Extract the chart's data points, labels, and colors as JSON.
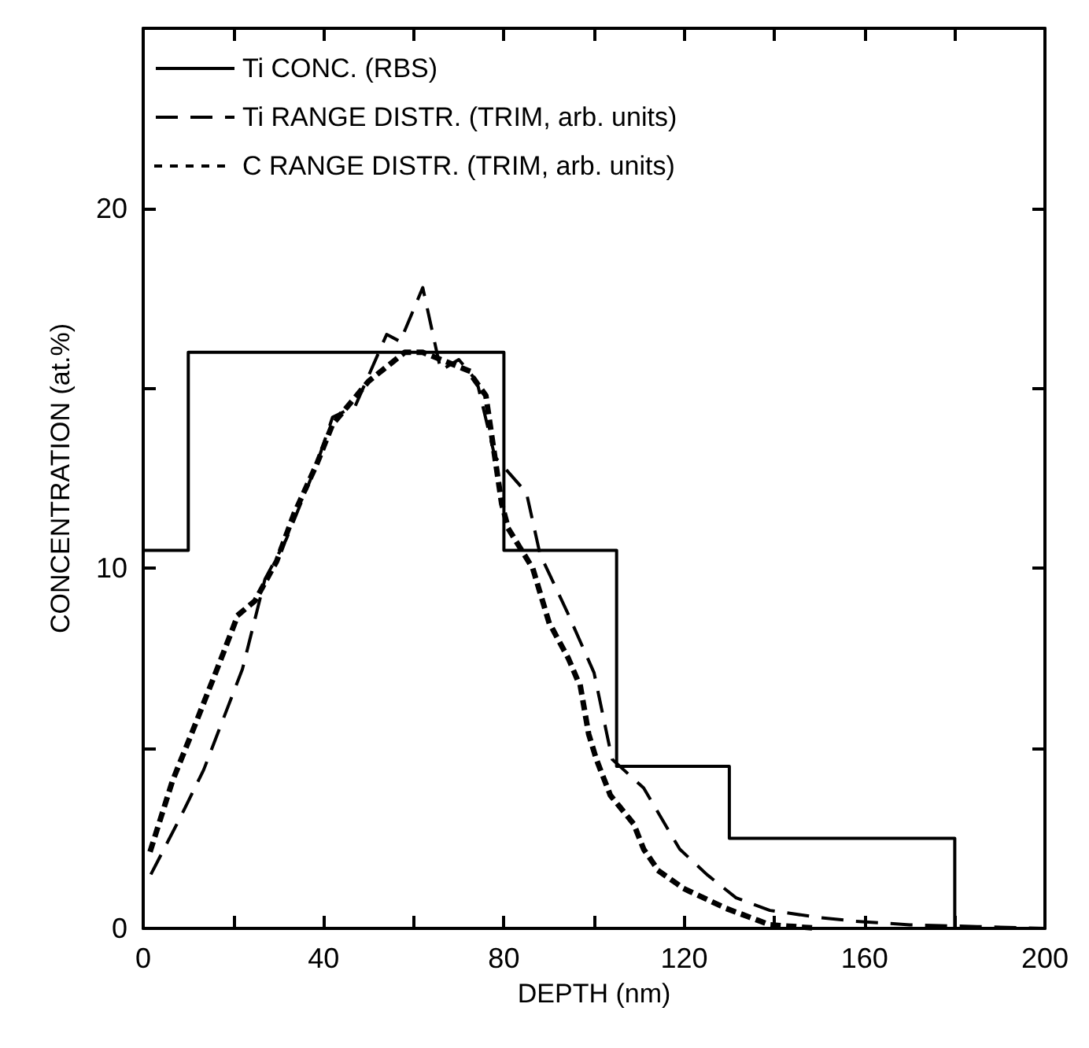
{
  "chart_data": {
    "type": "line",
    "xlabel": "DEPTH (nm)",
    "ylabel": "CONCENTRATION (at.%)",
    "xlim": [
      0,
      200
    ],
    "xticks": [
      0,
      {
        "value": 20,
        "label": null
      },
      40,
      {
        "value": 60,
        "label": null
      },
      80,
      {
        "value": 100,
        "label": null
      },
      120,
      {
        "value": 140,
        "label": null
      },
      160,
      {
        "value": 180,
        "label": null
      },
      200
    ],
    "ylim": [
      0,
      25
    ],
    "yticks": [
      0,
      {
        "value": 5,
        "label": null
      },
      10,
      {
        "value": 15,
        "label": null
      },
      20
    ],
    "grid": false,
    "legend": "top left",
    "marker": "none",
    "series": [
      {
        "name": "Ti CONC. (RBS)",
        "type": "step",
        "color": "#000000",
        "line_style": "solid",
        "x": [
          0,
          10,
          80,
          105,
          130,
          180
        ],
        "values": [
          10.5,
          16,
          10.5,
          4.5,
          2.5,
          0
        ]
      },
      {
        "name": "Ti RANGE DISTR. (TRIM, arb. units)",
        "color": "#000000",
        "line_style": "dashed",
        "x": [
          1.7,
          8.3,
          13.4,
          22,
          27,
          31.7,
          38.5,
          42,
          47,
          54,
          57,
          62,
          66,
          70,
          74,
          78,
          85,
          88,
          94,
          100,
          104,
          111,
          119,
          125,
          131.5,
          139,
          150,
          158,
          170,
          185,
          200
        ],
        "values": [
          1.5,
          3.1,
          4.4,
          7.2,
          9.7,
          10.8,
          12.9,
          14.2,
          14.5,
          16.5,
          16.3,
          17.8,
          15.5,
          15.8,
          15.2,
          13.1,
          12.1,
          10.4,
          8.8,
          7.1,
          4.7,
          3.9,
          2.2,
          1.5,
          0.85,
          0.5,
          0.3,
          0.2,
          0.1,
          0.05,
          0
        ]
      },
      {
        "name": "C RANGE DISTR. (TRIM, arb. units)",
        "color": "#000000",
        "line_style": "dotted",
        "x": [
          1.7,
          6.5,
          10.7,
          17,
          21,
          24.8,
          29.6,
          33.4,
          38.5,
          42,
          50,
          58,
          62,
          66,
          72,
          76,
          79.5,
          81,
          86.4,
          90,
          94.3,
          97,
          98.8,
          100.5,
          103.6,
          108.8,
          111,
          114.3,
          120,
          129.4,
          139,
          150
        ],
        "values": [
          2.2,
          4.1,
          5.4,
          7.4,
          8.7,
          9.1,
          10.2,
          11.5,
          12.9,
          14,
          15.2,
          16,
          16,
          15.8,
          15.5,
          14.8,
          11.8,
          11.1,
          10,
          8.5,
          7.5,
          6.7,
          5.4,
          4.7,
          3.7,
          2.9,
          2.2,
          1.6,
          1.1,
          0.55,
          0.1,
          0
        ]
      }
    ]
  }
}
